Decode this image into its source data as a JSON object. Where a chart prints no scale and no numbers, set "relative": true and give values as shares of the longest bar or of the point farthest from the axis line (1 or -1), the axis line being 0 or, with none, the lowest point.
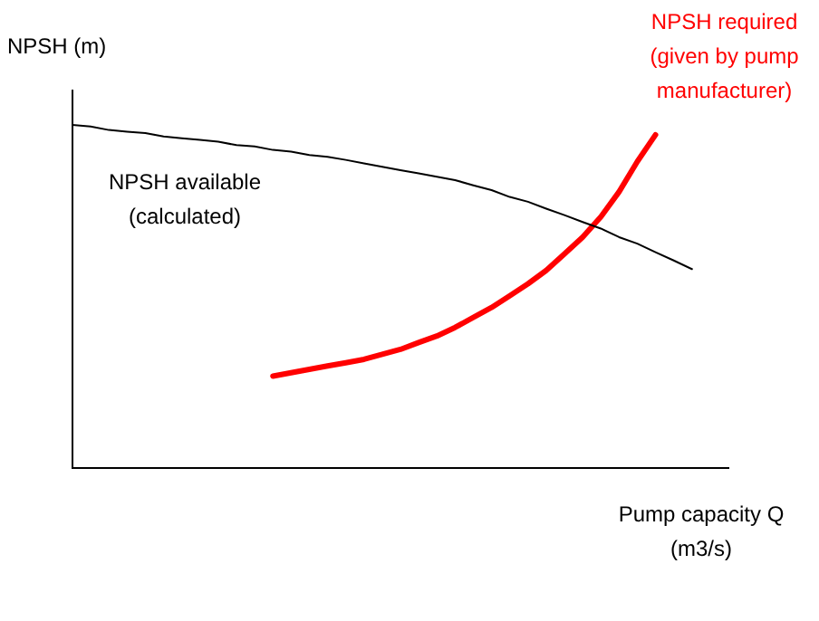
{
  "chart_data": {
    "type": "line",
    "relative": true,
    "ylabel": "NPSH (m)",
    "xlabel": "Pump capacity Q (m3/s)",
    "grid": false,
    "legend": false,
    "marker": "none",
    "categories": [
      null,
      null,
      null,
      null,
      null,
      null,
      null,
      null,
      null,
      null,
      null,
      null,
      null,
      null,
      null,
      null,
      null,
      null,
      null,
      null,
      null,
      null,
      null,
      null,
      null,
      null,
      null,
      null,
      null,
      null,
      null,
      null,
      null,
      null,
      null,
      null,
      null
    ],
    "series": [
      {
        "name": "NPSH available (calculated)",
        "color": "#000000",
        "values": [
          1,
          0.995,
          0.985,
          0.98,
          0.976,
          0.966,
          0.961,
          0.956,
          0.951,
          0.941,
          0.937,
          0.927,
          0.922,
          0.912,
          0.907,
          0.898,
          0.888,
          0.878,
          0.868,
          0.859,
          0.849,
          0.839,
          0.824,
          0.81,
          0.79,
          0.776,
          0.756,
          0.737,
          0.717,
          0.698,
          0.673,
          0.654,
          0.629,
          0.605,
          0.58,
          null,
          null
        ]
      },
      {
        "name": "NPSH required (given by pump manufacturer)",
        "color": "#ff0000",
        "values": [
          null,
          null,
          null,
          null,
          null,
          null,
          null,
          null,
          null,
          null,
          null,
          0.268,
          0.278,
          0.288,
          0.298,
          0.307,
          0.317,
          0.332,
          0.346,
          0.366,
          0.385,
          0.41,
          0.439,
          0.468,
          0.502,
          0.537,
          0.576,
          0.624,
          0.673,
          0.732,
          0.805,
          0.893,
          0.971,
          null,
          null,
          null,
          null
        ]
      }
    ]
  }
}
